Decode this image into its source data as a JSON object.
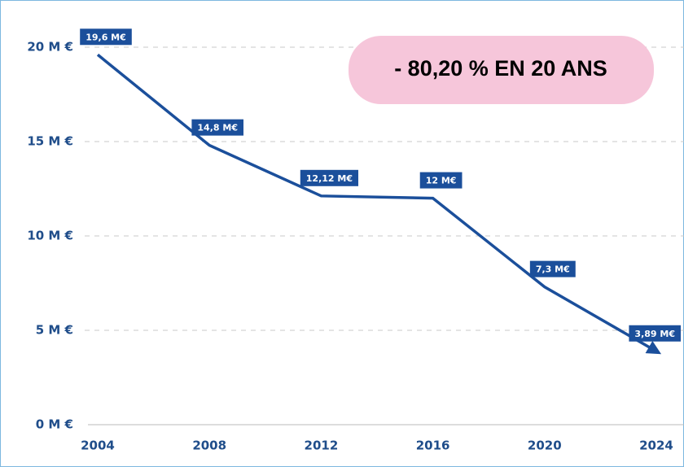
{
  "chart_data": {
    "type": "line",
    "annotation": "- 80,20 % EN 20 ANS",
    "x": [
      2004,
      2008,
      2012,
      2016,
      2020,
      2024
    ],
    "series": [
      {
        "color": "#1b4f9b",
        "values": [
          19.6,
          14.8,
          12.12,
          12,
          7.3,
          3.89
        ],
        "value_labels": [
          "19,6 M€",
          "14,8 M€",
          "12,12 M€",
          "12 M€",
          "7,3 M€",
          "3,89 M€"
        ]
      }
    ],
    "xlim": [
      2004,
      2024
    ],
    "xticks": [
      2004,
      2008,
      2012,
      2016,
      2020,
      2024
    ],
    "ylim": [
      0,
      20
    ],
    "yticks": [
      {
        "value": 0,
        "label": "0 M €"
      },
      {
        "value": 5,
        "label": "5 M €"
      },
      {
        "value": 10,
        "label": "10 M €"
      },
      {
        "value": 15,
        "label": "15 M €"
      },
      {
        "value": 20,
        "label": "20 M €"
      }
    ],
    "grid": true
  }
}
